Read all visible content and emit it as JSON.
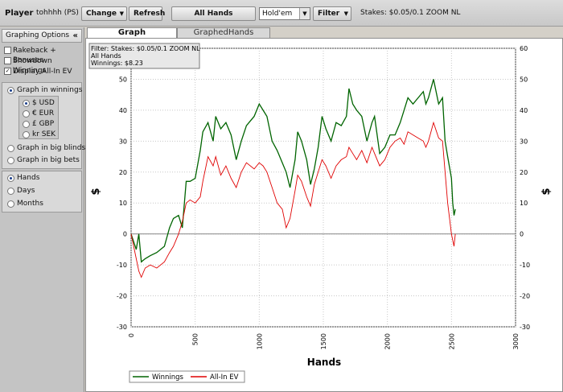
{
  "toolbar": {
    "player_label": "Player",
    "player_name": "tohhhh (PS)",
    "change_label": "Change",
    "refresh_label": "Refresh",
    "all_hands_label": "All Hands",
    "game_select_value": "Hold'em",
    "filter_label": "Filter",
    "stakes_text": "Stakes: $0.05/0.1 ZOOM NL"
  },
  "sidebar": {
    "title": "Graphing Options",
    "collapse_glyph": "«",
    "checkboxes": [
      {
        "label": "Rakeback + Bonuses",
        "checked": false
      },
      {
        "label": "Showdown Winnings",
        "checked": false
      },
      {
        "label": "Display All-In EV",
        "checked": true
      }
    ],
    "graph_modes": [
      {
        "label": "Graph in winnings",
        "selected": true
      },
      {
        "label": "Graph in big blinds",
        "selected": false
      },
      {
        "label": "Graph in big bets",
        "selected": false
      }
    ],
    "currencies": [
      {
        "label": "$ USD",
        "selected": true
      },
      {
        "label": "€ EUR",
        "selected": false
      },
      {
        "label": "£ GBP",
        "selected": false
      },
      {
        "label": "kr SEK",
        "selected": false
      }
    ],
    "x_units": [
      {
        "label": "Hands",
        "selected": true
      },
      {
        "label": "Days",
        "selected": false
      },
      {
        "label": "Months",
        "selected": false
      }
    ]
  },
  "tabs": [
    {
      "label": "Graph",
      "active": true
    },
    {
      "label": "GraphedHands",
      "active": false
    }
  ],
  "info_box": {
    "line1": "Filter: Stakes: $0.05/0.1 ZOOM NL",
    "line2": "All Hands",
    "line3": "Winnings: $8.23"
  },
  "colors": {
    "winnings": "#006400",
    "allin_ev": "#e00000"
  },
  "chart_data": {
    "type": "line",
    "xlabel": "Hands",
    "ylabel": "$",
    "xlim": [
      0,
      3000
    ],
    "ylim": [
      -30,
      60
    ],
    "x_ticks": [
      "0",
      "500",
      "1000",
      "1500",
      "2000",
      "2500",
      "3000"
    ],
    "y_ticks": [
      "-30",
      "-20",
      "-10",
      "0",
      "10",
      "20",
      "30",
      "40",
      "50",
      "60"
    ],
    "grid": true,
    "legend_position": "bottom-left",
    "series": [
      {
        "name": "Winnings",
        "x": [
          0,
          40,
          60,
          80,
          110,
          150,
          200,
          260,
          300,
          330,
          370,
          400,
          430,
          460,
          500,
          540,
          560,
          600,
          640,
          660,
          700,
          740,
          780,
          820,
          860,
          900,
          960,
          1000,
          1030,
          1060,
          1100,
          1140,
          1180,
          1210,
          1240,
          1280,
          1300,
          1330,
          1370,
          1400,
          1430,
          1460,
          1490,
          1520,
          1560,
          1600,
          1640,
          1680,
          1700,
          1730,
          1760,
          1800,
          1840,
          1880,
          1900,
          1940,
          1980,
          2020,
          2060,
          2100,
          2130,
          2160,
          2200,
          2240,
          2280,
          2300,
          2320,
          2360,
          2400,
          2430,
          2450,
          2470,
          2500,
          2510,
          2520,
          2530
        ],
        "y": [
          0,
          -5,
          0,
          -9,
          -8,
          -7,
          -6,
          -4,
          2,
          5,
          6,
          2,
          17,
          17,
          18,
          27,
          33,
          36,
          30,
          38,
          34,
          36,
          32,
          24,
          30,
          35,
          38,
          42,
          40,
          38,
          30,
          27,
          23,
          20,
          15,
          24,
          33,
          30,
          24,
          16,
          21,
          28,
          38,
          34,
          30,
          36,
          35,
          38,
          47,
          42,
          40,
          38,
          30,
          36,
          38,
          26,
          28,
          32,
          32,
          36,
          40,
          44,
          42,
          44,
          46,
          42,
          44,
          50,
          42,
          44,
          30,
          25,
          18,
          10,
          6,
          8
        ]
      },
      {
        "name": "All-In EV",
        "x": [
          0,
          40,
          60,
          80,
          110,
          150,
          200,
          260,
          300,
          330,
          370,
          400,
          430,
          460,
          500,
          540,
          560,
          600,
          640,
          660,
          700,
          740,
          780,
          820,
          860,
          900,
          960,
          1000,
          1030,
          1060,
          1100,
          1140,
          1180,
          1210,
          1240,
          1280,
          1300,
          1330,
          1370,
          1400,
          1430,
          1460,
          1490,
          1520,
          1560,
          1600,
          1640,
          1680,
          1700,
          1730,
          1760,
          1800,
          1840,
          1880,
          1900,
          1940,
          1980,
          2020,
          2060,
          2100,
          2130,
          2160,
          2200,
          2240,
          2280,
          2300,
          2320,
          2360,
          2400,
          2430,
          2450,
          2470,
          2500,
          2510,
          2520,
          2530
        ],
        "y": [
          0,
          -8,
          -12,
          -14,
          -11,
          -10,
          -11,
          -9,
          -6,
          -4,
          0,
          4,
          10,
          11,
          10,
          12,
          17,
          25,
          22,
          25,
          19,
          22,
          18,
          15,
          20,
          23,
          21,
          23,
          22,
          20,
          15,
          10,
          8,
          2,
          5,
          14,
          19,
          17,
          12,
          9,
          16,
          20,
          24,
          22,
          18,
          22,
          24,
          25,
          28,
          26,
          24,
          27,
          23,
          28,
          26,
          22,
          24,
          28,
          30,
          31,
          29,
          33,
          32,
          31,
          30,
          28,
          30,
          36,
          31,
          30,
          20,
          10,
          0,
          -2,
          -4,
          0
        ]
      }
    ]
  }
}
